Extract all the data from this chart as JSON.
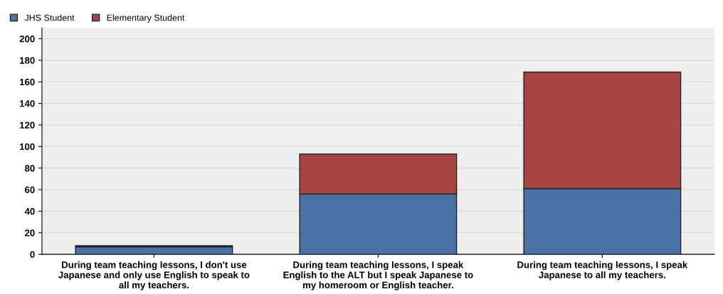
{
  "chart_data": {
    "type": "bar",
    "stacked": true,
    "categories": [
      "During team teaching lessons, I don't use\nJapanese and only use English to speak to\nall my teachers.",
      "During team teaching lessons, I speak\nEnglish to the ALT but I speak Japanese to\nmy homeroom or English teacher.",
      "During team teaching lessons, I speak\nJapanese to all my teachers."
    ],
    "series": [
      {
        "name": "JHS Student",
        "color": "#4a72a6",
        "values": [
          7,
          56,
          61
        ]
      },
      {
        "name": "Elementary Student",
        "color": "#a84442",
        "values": [
          1,
          37,
          108
        ]
      }
    ],
    "ylim": [
      0,
      210
    ],
    "yticks": [
      0,
      20,
      40,
      60,
      80,
      100,
      120,
      140,
      160,
      180,
      200
    ],
    "grid": "y",
    "legend": "top left"
  }
}
